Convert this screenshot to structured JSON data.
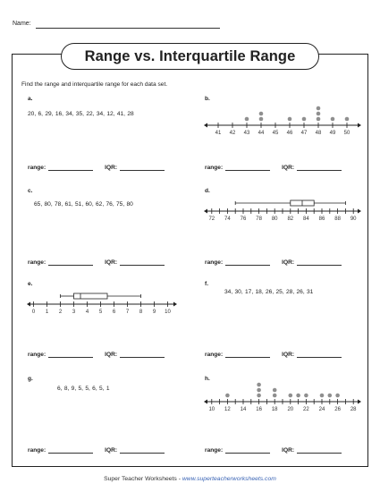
{
  "header": {
    "name_label": "Name:",
    "title": "Range vs. Interquartile Range"
  },
  "instructions": "Find the range and interquartile range for each data set.",
  "answer_labels": {
    "range": "range:",
    "iqr": "IQR:"
  },
  "problems": {
    "a": {
      "label": "a.",
      "data": "20,  6,  29,  16,  34,  35,  22,  34,  12,  41,  28"
    },
    "b": {
      "label": "b."
    },
    "c": {
      "label": "c.",
      "data": "65,  80,  78,  61,  51,  60,  62,  76,  75,  80"
    },
    "d": {
      "label": "d."
    },
    "e": {
      "label": "e."
    },
    "f": {
      "label": "f.",
      "data": "34,  30,  17,  18,  26,  25,  28,  26,  31"
    },
    "g": {
      "label": "g.",
      "data": "6,  8,  9,  5,  5,  6,  5,  1"
    },
    "h": {
      "label": "h."
    }
  },
  "chart_data": [
    {
      "id": "b",
      "type": "scatter",
      "subtype": "dot_plot",
      "xlim": [
        40,
        51
      ],
      "ticks": [
        41,
        42,
        43,
        44,
        45,
        46,
        47,
        48,
        49,
        50
      ],
      "tick_labels": [
        "41",
        "42",
        "43",
        "44",
        "45",
        "46",
        "47",
        "48",
        "49",
        "50"
      ],
      "points": [
        {
          "x": 43,
          "count": 1
        },
        {
          "x": 44,
          "count": 2
        },
        {
          "x": 46,
          "count": 1
        },
        {
          "x": 47,
          "count": 1
        },
        {
          "x": 48,
          "count": 3
        },
        {
          "x": 49,
          "count": 1
        },
        {
          "x": 50,
          "count": 1
        }
      ]
    },
    {
      "id": "d",
      "type": "box",
      "xlim": [
        71,
        91
      ],
      "ticks": [
        72,
        73,
        74,
        75,
        76,
        77,
        78,
        79,
        80,
        81,
        82,
        83,
        84,
        85,
        86,
        87,
        88,
        89,
        90
      ],
      "tick_labels": [
        "72",
        "",
        "74",
        "",
        "76",
        "",
        "78",
        "",
        "80",
        "",
        "82",
        "",
        "84",
        "",
        "86",
        "",
        "88",
        "",
        "90"
      ],
      "min": 75,
      "q1": 82,
      "median": 83.5,
      "q3": 85,
      "max": 89
    },
    {
      "id": "e",
      "type": "box",
      "xlim": [
        -0.5,
        10.7
      ],
      "ticks": [
        0,
        1,
        2,
        3,
        4,
        5,
        6,
        7,
        8,
        9,
        10
      ],
      "tick_labels": [
        "0",
        "1",
        "2",
        "3",
        "4",
        "5",
        "6",
        "7",
        "8",
        "9",
        "10"
      ],
      "min": 2,
      "q1": 3,
      "median": 3.5,
      "q3": 5.5,
      "max": 8
    },
    {
      "id": "h",
      "type": "scatter",
      "subtype": "dot_plot",
      "xlim": [
        9,
        29
      ],
      "ticks": [
        10,
        11,
        12,
        13,
        14,
        15,
        16,
        17,
        18,
        19,
        20,
        21,
        22,
        23,
        24,
        25,
        26,
        27,
        28
      ],
      "tick_labels": [
        "10",
        "",
        "12",
        "",
        "14",
        "",
        "16",
        "",
        "18",
        "",
        "20",
        "",
        "22",
        "",
        "24",
        "",
        "26",
        "",
        "28"
      ],
      "points": [
        {
          "x": 12,
          "count": 1
        },
        {
          "x": 16,
          "count": 3
        },
        {
          "x": 18,
          "count": 2
        },
        {
          "x": 20,
          "count": 1
        },
        {
          "x": 21,
          "count": 1
        },
        {
          "x": 22,
          "count": 1
        },
        {
          "x": 24,
          "count": 1
        },
        {
          "x": 25,
          "count": 1
        },
        {
          "x": 26,
          "count": 1
        }
      ]
    }
  ],
  "footer": {
    "brand": "Super Teacher Worksheets",
    "separator": " - ",
    "url": "www.superteacherworksheets.com"
  },
  "colors": {
    "dot": "#8f8f8f",
    "line": "#222222",
    "link": "#3a64b5"
  }
}
